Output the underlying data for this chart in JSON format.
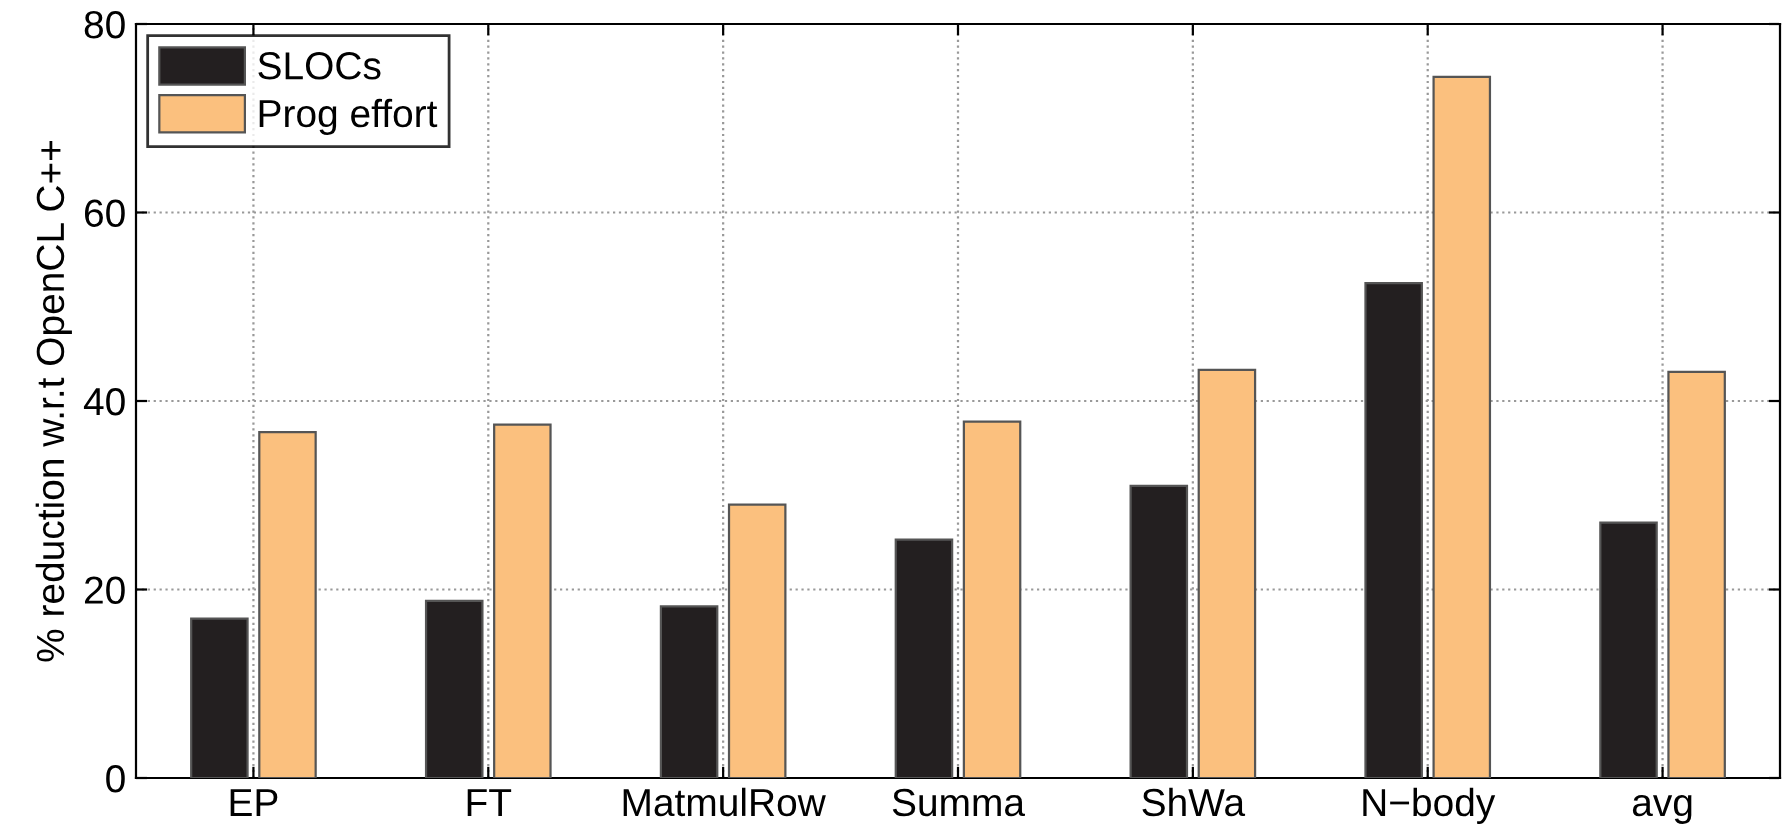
{
  "chart_data": {
    "type": "bar",
    "ylabel": "% reduction w.r.t OpenCL C++",
    "categories": [
      "EP",
      "FT",
      "MatmulRow",
      "Summa",
      "ShWa",
      "N−body",
      "avg"
    ],
    "series": [
      {
        "name": "SLOCs",
        "color": "#231f20",
        "values": [
          16.9,
          18.8,
          18.2,
          25.3,
          31.0,
          52.5,
          27.1
        ]
      },
      {
        "name": "Prog effort",
        "color": "#fbc07e",
        "values": [
          36.7,
          37.5,
          29.0,
          37.8,
          43.3,
          74.4,
          43.1
        ]
      }
    ],
    "ylim": [
      0,
      80
    ],
    "yticks": [
      0,
      20,
      40,
      60,
      80
    ],
    "grid": true,
    "legend": "top left"
  }
}
